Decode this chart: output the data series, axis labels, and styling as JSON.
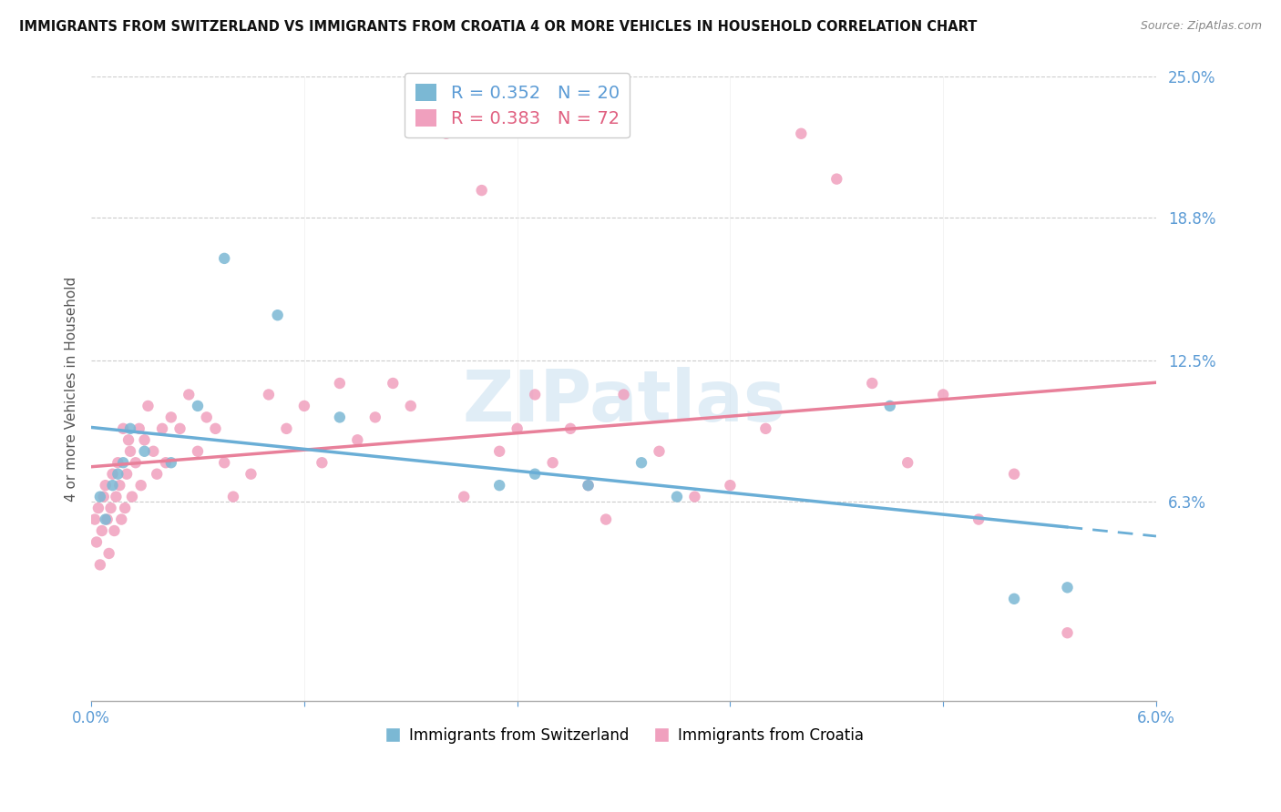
{
  "title": "IMMIGRANTS FROM SWITZERLAND VS IMMIGRANTS FROM CROATIA 4 OR MORE VEHICLES IN HOUSEHOLD CORRELATION CHART",
  "source": "Source: ZipAtlas.com",
  "ylabel": "4 or more Vehicles in Household",
  "y_tick_labels": [
    "6.3%",
    "12.5%",
    "18.8%",
    "25.0%"
  ],
  "y_tick_values": [
    6.3,
    12.5,
    18.8,
    25.0
  ],
  "x_min": 0.0,
  "x_max": 6.0,
  "y_min": -2.5,
  "y_max": 25.0,
  "switzerland_R": 0.352,
  "switzerland_N": 20,
  "croatia_R": 0.383,
  "croatia_N": 72,
  "color_switzerland": "#7bb8d4",
  "color_croatia": "#f0a0be",
  "color_swiss_line": "#6aaed6",
  "color_croatia_line": "#e8809a",
  "watermark": "ZIPatlas",
  "legend_labels": [
    "Immigrants from Switzerland",
    "Immigrants from Croatia"
  ],
  "swiss_scatter_x": [
    0.05,
    0.08,
    0.12,
    0.15,
    0.18,
    0.22,
    0.3,
    0.45,
    0.6,
    0.75,
    1.05,
    1.4,
    2.3,
    2.5,
    2.8,
    3.1,
    3.3,
    4.5,
    5.2,
    5.5
  ],
  "swiss_scatter_y": [
    6.5,
    5.5,
    7.0,
    7.5,
    8.0,
    9.5,
    8.5,
    8.0,
    10.5,
    17.0,
    14.5,
    10.0,
    7.0,
    7.5,
    7.0,
    8.0,
    6.5,
    10.5,
    2.0,
    2.5
  ],
  "croatia_scatter_x": [
    0.02,
    0.03,
    0.04,
    0.05,
    0.06,
    0.07,
    0.08,
    0.09,
    0.1,
    0.11,
    0.12,
    0.13,
    0.14,
    0.15,
    0.16,
    0.17,
    0.18,
    0.19,
    0.2,
    0.21,
    0.22,
    0.23,
    0.25,
    0.27,
    0.28,
    0.3,
    0.32,
    0.35,
    0.37,
    0.4,
    0.42,
    0.45,
    0.5,
    0.55,
    0.6,
    0.65,
    0.7,
    0.75,
    0.8,
    0.9,
    1.0,
    1.1,
    1.2,
    1.3,
    1.4,
    1.5,
    1.6,
    1.7,
    1.8,
    2.0,
    2.1,
    2.2,
    2.3,
    2.4,
    2.5,
    2.6,
    2.7,
    2.8,
    2.9,
    3.0,
    3.2,
    3.4,
    3.6,
    3.8,
    4.0,
    4.2,
    4.4,
    4.6,
    4.8,
    5.0,
    5.2,
    5.5
  ],
  "croatia_scatter_y": [
    5.5,
    4.5,
    6.0,
    3.5,
    5.0,
    6.5,
    7.0,
    5.5,
    4.0,
    6.0,
    7.5,
    5.0,
    6.5,
    8.0,
    7.0,
    5.5,
    9.5,
    6.0,
    7.5,
    9.0,
    8.5,
    6.5,
    8.0,
    9.5,
    7.0,
    9.0,
    10.5,
    8.5,
    7.5,
    9.5,
    8.0,
    10.0,
    9.5,
    11.0,
    8.5,
    10.0,
    9.5,
    8.0,
    6.5,
    7.5,
    11.0,
    9.5,
    10.5,
    8.0,
    11.5,
    9.0,
    10.0,
    11.5,
    10.5,
    22.5,
    6.5,
    20.0,
    8.5,
    9.5,
    11.0,
    8.0,
    9.5,
    7.0,
    5.5,
    11.0,
    8.5,
    6.5,
    7.0,
    9.5,
    22.5,
    20.5,
    11.5,
    8.0,
    11.0,
    5.5,
    7.5,
    0.5
  ]
}
